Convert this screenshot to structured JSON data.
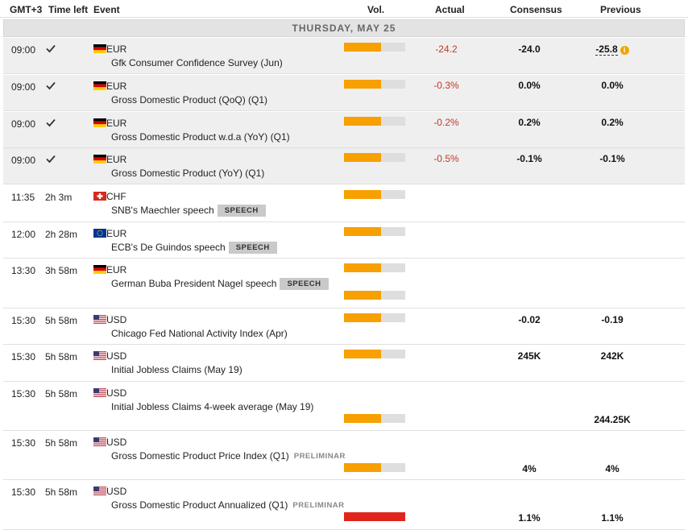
{
  "header": {
    "timezone": "GMT+3",
    "time_left": "Time left",
    "event": "Event",
    "vol": "Vol.",
    "actual": "Actual",
    "consensus": "Consensus",
    "previous": "Previous"
  },
  "day_label": "THURSDAY, MAY 25",
  "colors": {
    "vol_orange": "#f7a000",
    "vol_red": "#e0251b",
    "vol_bg": "#dedede",
    "actual_red": "#c0392b"
  },
  "events": [
    {
      "time": "09:00",
      "time_left": "",
      "done": true,
      "flag": "germany-flag",
      "currency": "EUR",
      "name": "Gfk Consumer Confidence Survey (Jun)",
      "badge": "",
      "vol_fraction": 0.6,
      "vol_color": "#f7a000",
      "actual": "-24.2",
      "consensus": "-24.0",
      "previous": "-25.8",
      "previous_revised": true
    },
    {
      "time": "09:00",
      "time_left": "",
      "done": true,
      "flag": "germany-flag",
      "currency": "EUR",
      "name": "Gross Domestic Product (QoQ) (Q1)",
      "badge": "",
      "vol_fraction": 0.6,
      "vol_color": "#f7a000",
      "actual": "-0.3%",
      "consensus": "0.0%",
      "previous": "0.0%",
      "previous_revised": false
    },
    {
      "time": "09:00",
      "time_left": "",
      "done": true,
      "flag": "germany-flag",
      "currency": "EUR",
      "name": "Gross Domestic Product w.d.a (YoY) (Q1)",
      "badge": "",
      "vol_fraction": 0.6,
      "vol_color": "#f7a000",
      "actual": "-0.2%",
      "consensus": "0.2%",
      "previous": "0.2%",
      "previous_revised": false
    },
    {
      "time": "09:00",
      "time_left": "",
      "done": true,
      "flag": "germany-flag",
      "currency": "EUR",
      "name": "Gross Domestic Product (YoY) (Q1)",
      "badge": "",
      "vol_fraction": 0.6,
      "vol_color": "#f7a000",
      "actual": "-0.5%",
      "consensus": "-0.1%",
      "previous": "-0.1%",
      "previous_revised": false
    },
    {
      "time": "11:35",
      "time_left": "2h 3m",
      "done": false,
      "flag": "switzerland-flag",
      "currency": "CHF",
      "name": "SNB's Maechler speech",
      "badge": "SPEECH",
      "vol_fraction": 0.6,
      "vol_color": "#f7a000",
      "actual": "",
      "consensus": "",
      "previous": "",
      "previous_revised": false
    },
    {
      "time": "12:00",
      "time_left": "2h 28m",
      "done": false,
      "flag": "eu-flag",
      "currency": "EUR",
      "name": "ECB's De Guindos speech",
      "badge": "SPEECH",
      "vol_fraction": 0.6,
      "vol_color": "#f7a000",
      "actual": "",
      "consensus": "",
      "previous": "",
      "previous_revised": false
    },
    {
      "time": "13:30",
      "time_left": "3h 58m",
      "done": false,
      "flag": "germany-flag",
      "currency": "EUR",
      "name": "German Buba President Nagel speech",
      "badge": "SPEECH",
      "vol_fraction": 0.6,
      "vol_color": "#f7a000",
      "actual": "",
      "consensus": "",
      "previous": "",
      "previous_revised": false
    },
    {
      "time": "15:30",
      "time_left": "5h 58m",
      "done": false,
      "flag": "usa-flag",
      "currency": "USD",
      "name": "Chicago Fed National Activity Index (Apr)",
      "badge": "",
      "vol_fraction": 0.6,
      "vol_color": "#f7a000",
      "actual": "",
      "consensus": "-0.02",
      "previous": "-0.19",
      "previous_revised": false
    },
    {
      "time": "15:30",
      "time_left": "5h 58m",
      "done": false,
      "flag": "usa-flag",
      "currency": "USD",
      "name": "Initial Jobless Claims (May 19)",
      "badge": "",
      "vol_fraction": 0.6,
      "vol_color": "#f7a000",
      "actual": "",
      "consensus": "245K",
      "previous": "242K",
      "previous_revised": false
    },
    {
      "time": "15:30",
      "time_left": "5h 58m",
      "done": false,
      "flag": "usa-flag",
      "currency": "USD",
      "name": "Initial Jobless Claims 4-week average (May 19)",
      "badge": "",
      "vol_fraction": 0.6,
      "vol_color": "#f7a000",
      "actual": "",
      "consensus": "",
      "previous": "244.25K",
      "previous_revised": false
    },
    {
      "time": "15:30",
      "time_left": "5h 58m",
      "done": false,
      "flag": "usa-flag",
      "currency": "USD",
      "name": "Gross Domestic Product Price Index (Q1)",
      "badge": "PRELIMINAR",
      "vol_fraction": 0.6,
      "vol_color": "#f7a000",
      "actual": "",
      "consensus": "4%",
      "previous": "4%",
      "previous_revised": false
    },
    {
      "time": "15:30",
      "time_left": "5h 58m",
      "done": false,
      "flag": "usa-flag",
      "currency": "USD",
      "name": "Gross Domestic Product Annualized (Q1)",
      "badge": "PRELIMINAR",
      "vol_fraction": 1.0,
      "vol_color": "#e0251b",
      "actual": "",
      "consensus": "1.1%",
      "previous": "1.1%",
      "previous_revised": false
    }
  ]
}
